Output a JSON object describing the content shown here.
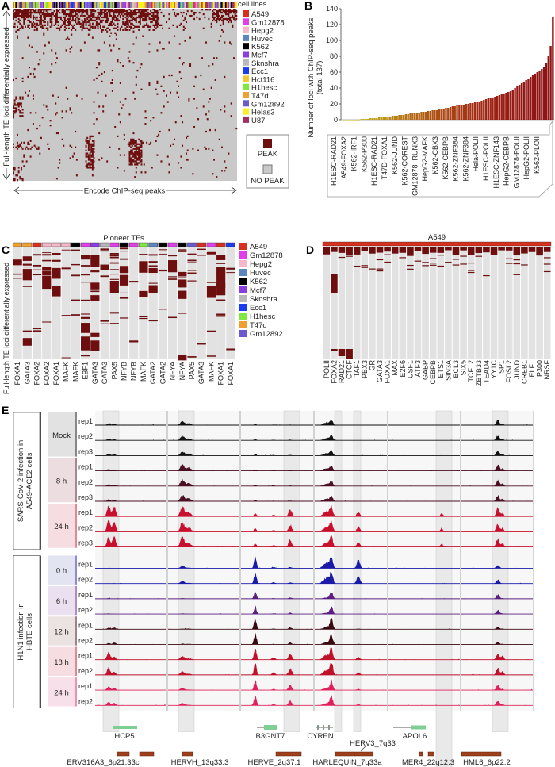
{
  "panels": {
    "a": "A",
    "b": "B",
    "c": "C",
    "d": "D",
    "e": "E"
  },
  "panel_a": {
    "legend_title": "cell lines",
    "cell_lines": [
      {
        "name": "A549",
        "color": "#d7301f"
      },
      {
        "name": "Gm12878",
        "color": "#e040e8"
      },
      {
        "name": "Hepg2",
        "color": "#f4b8c8"
      },
      {
        "name": "Huvec",
        "color": "#5b86c0"
      },
      {
        "name": "K562",
        "color": "#000000"
      },
      {
        "name": "Mcf7",
        "color": "#8a3de0"
      },
      {
        "name": "Sknshra",
        "color": "#b8b8b8"
      },
      {
        "name": "Ecc1",
        "color": "#1a3cf0"
      },
      {
        "name": "Hct116",
        "color": "#f0c830"
      },
      {
        "name": "H1hesc",
        "color": "#80e840"
      },
      {
        "name": "T47d",
        "color": "#f0a030"
      },
      {
        "name": "Gm12892",
        "color": "#6a5ad0"
      },
      {
        "name": "Helas3",
        "color": "#f8f020"
      },
      {
        "name": "U87",
        "color": "#a03060"
      }
    ],
    "peak_label": "PEAK",
    "no_peak_label": "NO PEAK",
    "peak_color": "#6e0f0f",
    "no_peak_color": "#c9c9c9",
    "y_label": "Full-length TE loci differentially expressed",
    "x_label": "Encode ChIP-seq peaks"
  },
  "chart_data": [
    {
      "type": "bar",
      "panel": "B",
      "ylabel": "Number of loci with ChIP-seq peaks",
      "ylabel2": "(total 137)",
      "ylim": [
        0,
        140
      ],
      "yticks": [
        0,
        20,
        40,
        60,
        80,
        100,
        120,
        140
      ],
      "tick_labels": [
        "H1ESC-RAD21",
        "A549-FOXA2",
        "K562-IRF1",
        "K562-P300",
        "H1ESC-RAD21",
        "T47D-FOXA1",
        "K562-JUND",
        "K562-COREST",
        "GM12878_RUNX3",
        "HepG2-MAFK",
        "K562-CBX3",
        "K562-CEBPB",
        "K562-ZNF384",
        "K562-ZNF384",
        "Hela-POLII",
        "H1ESC-POLII",
        "H1ESC-ZNF143",
        "HepG2-CEBPB",
        "GM12878-POLII",
        "HepG2-POLII",
        "K562-PLOII"
      ],
      "values": [
        0,
        0,
        0,
        0,
        0,
        0,
        0,
        0,
        1,
        1,
        1,
        1,
        2,
        2,
        2,
        2,
        3,
        3,
        3,
        4,
        4,
        4,
        5,
        5,
        5,
        6,
        6,
        6,
        7,
        7,
        8,
        8,
        8,
        9,
        9,
        10,
        10,
        10,
        11,
        11,
        12,
        12,
        12,
        13,
        13,
        14,
        15,
        15,
        16,
        17,
        17,
        18,
        18,
        19,
        19,
        20,
        20,
        21,
        21,
        22,
        22,
        23,
        24,
        25,
        26,
        27,
        28,
        28,
        29,
        30,
        31,
        32,
        33,
        34,
        35,
        36,
        38,
        40,
        42,
        44,
        46,
        48,
        50,
        52,
        54,
        56,
        58,
        60,
        62,
        64,
        67,
        72,
        80,
        93,
        130
      ]
    },
    {
      "type": "heatmap",
      "panel": "C",
      "title": "Pioneer TFs",
      "ylabel": "Full-length TE loci differentially expressed",
      "columns": [
        "FOXA1",
        "GATA3",
        "FOXA2",
        "FOXA2",
        "FOXA1",
        "MAFK",
        "MAFK",
        "EBF1",
        "GATA3",
        "GATA3",
        "PAX5",
        "NFYB",
        "NFYB",
        "MAFK",
        "GATA2",
        "GATA2",
        "NFYA",
        "NFYA",
        "PAX5",
        "GATA3",
        "MAFK",
        "FOXA1",
        "FOXA1"
      ],
      "column_cell_lines": [
        "T47d",
        "T47d",
        "A549",
        "Hepg2",
        "Hepg2",
        "Hepg2",
        "K562",
        "Gm12878",
        "Mcf7",
        "Sknshra",
        "Gm12878",
        "K562",
        "Gm12878",
        "H1hesc",
        "Huvec",
        "K562",
        "Gm12878",
        "K562",
        "Gm12892",
        "A549",
        "Gm12878",
        "A549",
        "Ecc1"
      ],
      "legend": [
        "A549",
        "Gm12878",
        "Hepg2",
        "Huvec",
        "K562",
        "Mcf7",
        "Sknshra",
        "Ecc1",
        "H1hesc",
        "T47d",
        "Gm12892"
      ]
    },
    {
      "type": "heatmap",
      "panel": "D",
      "title": "A549",
      "columns": [
        "POLII",
        "FOXA2",
        "RAD21",
        "CTCF",
        "TAF1",
        "PBX3",
        "GR",
        "GATA3",
        "FOXA1",
        "MAX",
        "E2F6",
        "USF1",
        "ATF3",
        "GABP",
        "CEBPB",
        "ETS1",
        "SIN3A",
        "BCL3",
        "SIX5",
        "TCF12",
        "ZBTB33",
        "TEAD4",
        "YY1C",
        "SP1",
        "FOSL2",
        "JUND",
        "CREB1",
        "ELF1",
        "P300",
        "NRSF"
      ]
    }
  ],
  "panel_e": {
    "groups": [
      {
        "label1": "SARS-CoV-2 infection in",
        "label2": "A549-ACE2 cells",
        "conditions": [
          {
            "label": "Mock",
            "reps": [
              "rep1",
              "rep2",
              "rep3"
            ],
            "color": "#111111",
            "bg": "#e2e2e2"
          },
          {
            "label": "8 h",
            "reps": [
              "rep1",
              "rep2",
              "rep3"
            ],
            "color": "#4a0f22",
            "bg": "#ecdde0"
          },
          {
            "label": "24 h",
            "reps": [
              "rep1",
              "rep2",
              "rep3"
            ],
            "color": "#c8102e",
            "bg": "#f6dde2"
          }
        ]
      },
      {
        "label1": "H1N1 infection in",
        "label2": "HBTE cells",
        "conditions": [
          {
            "label": "0 h",
            "reps": [
              "rep1",
              "rep2"
            ],
            "color": "#1a1aa8",
            "bg": "#e2e4f2"
          },
          {
            "label": "6 h",
            "reps": [
              "rep1",
              "rep2"
            ],
            "color": "#5a1f80",
            "bg": "#ebe0f0"
          },
          {
            "label": "12 h",
            "reps": [
              "rep1",
              "rep2"
            ],
            "color": "#3a0810",
            "bg": "#ebe2e2"
          },
          {
            "label": "18 h",
            "reps": [
              "rep1",
              "rep2"
            ],
            "color": "#c0102a",
            "bg": "#f6dde2"
          },
          {
            "label": "24 h",
            "reps": [
              "rep1",
              "rep2"
            ],
            "color": "#e0205a",
            "bg": "#f8e0ea"
          }
        ]
      }
    ],
    "genes": [
      "HCP5",
      "B3GNT7",
      "CYREN",
      "APOL6"
    ],
    "te_loci": [
      "ERV316A3_6p21.33c",
      "HERVH_13q33.3",
      "HERVE_2q37.1",
      "HARLEQUIN_7q33a",
      "HERV3_7q33",
      "MER4_22q12.3",
      "HML6_6p22.2"
    ],
    "gene_color": "#7fcf95",
    "te_color": "#a0401a"
  }
}
